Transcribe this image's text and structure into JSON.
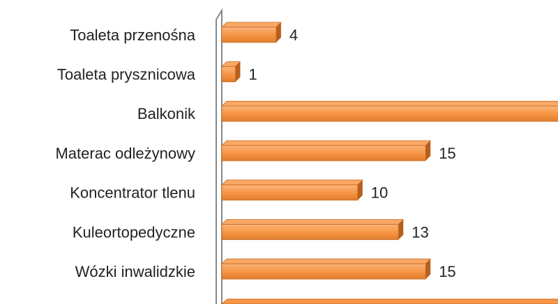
{
  "chart_data": {
    "type": "bar",
    "orientation": "horizontal",
    "categories": [
      "Toaleta przenośna",
      "Toaleta prysznicowa",
      "Balkonik",
      "Materac odleżynowy",
      "Koncentrator tlenu",
      "Kuleortopedyczne",
      "Wózki inwalidzkie"
    ],
    "values": [
      4,
      1,
      25,
      15,
      10,
      13,
      15
    ],
    "color": "#f79646",
    "xlim": [
      0,
      25
    ]
  }
}
